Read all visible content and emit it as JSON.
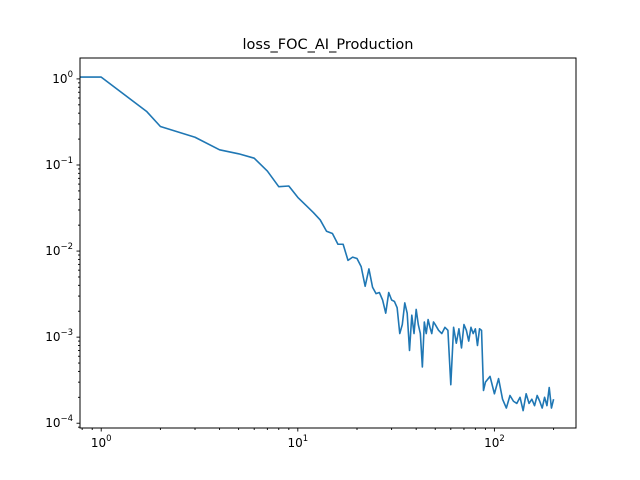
{
  "figure": {
    "title": "loss_FOC_AI_Production"
  },
  "chart_data": {
    "type": "line",
    "title": "loss_FOC_AI_Production",
    "xlabel": "",
    "ylabel": "",
    "xscale": "log",
    "yscale": "log",
    "xlim": [
      0.78,
      260
    ],
    "ylim": [
      8.8e-05,
      1.75
    ],
    "grid": false,
    "x_ticks": [
      {
        "value": 1,
        "label": "10",
        "exp": "0"
      },
      {
        "value": 10,
        "label": "10",
        "exp": "1"
      },
      {
        "value": 100,
        "label": "10",
        "exp": "2"
      }
    ],
    "y_ticks": [
      {
        "value": 0.0001,
        "label": "10",
        "exp": "−4"
      },
      {
        "value": 0.001,
        "label": "10",
        "exp": "−3"
      },
      {
        "value": 0.01,
        "label": "10",
        "exp": "−2"
      },
      {
        "value": 0.1,
        "label": "10",
        "exp": "−1"
      },
      {
        "value": 1,
        "label": "10",
        "exp": "0"
      }
    ],
    "colors": {
      "line": "#1f77b4"
    },
    "series": [
      {
        "x": [
          0.78,
          1,
          1.7,
          2,
          3,
          4,
          5,
          6,
          7,
          8,
          9,
          10,
          11,
          12,
          13,
          14,
          15,
          16,
          17,
          18,
          19,
          20,
          21,
          22,
          23,
          24,
          25,
          26,
          27,
          28,
          29,
          30,
          31,
          32,
          33,
          34,
          35,
          36,
          37,
          38,
          39,
          40,
          41,
          42,
          43,
          44,
          45,
          46,
          47,
          48,
          49,
          50,
          52,
          54,
          56,
          58,
          60,
          62,
          64,
          66,
          68,
          70,
          72,
          74,
          76,
          78,
          80,
          82,
          84,
          86,
          88,
          90,
          95,
          100,
          105,
          110,
          115,
          120,
          125,
          130,
          135,
          140,
          145,
          150,
          155,
          160,
          165,
          170,
          175,
          180,
          185,
          190,
          195,
          200
        ],
        "y": [
          1.05,
          1.05,
          0.42,
          0.28,
          0.21,
          0.15,
          0.135,
          0.12,
          0.085,
          0.056,
          0.057,
          0.042,
          0.034,
          0.028,
          0.023,
          0.017,
          0.016,
          0.012,
          0.012,
          0.0078,
          0.0085,
          0.0082,
          0.0066,
          0.0039,
          0.0062,
          0.0038,
          0.0032,
          0.0033,
          0.0027,
          0.0019,
          0.0033,
          0.0027,
          0.0026,
          0.0022,
          0.0011,
          0.0014,
          0.0025,
          0.0019,
          0.0007,
          0.0018,
          0.0011,
          0.0021,
          0.0014,
          0.0011,
          0.00045,
          0.0015,
          0.0011,
          0.0016,
          0.0013,
          0.0011,
          0.0015,
          0.0014,
          0.0012,
          0.0011,
          0.0013,
          0.0012,
          0.00028,
          0.0013,
          0.00085,
          0.00125,
          0.00075,
          0.0014,
          0.0012,
          0.0009,
          0.0013,
          0.0011,
          0.00125,
          0.0008,
          0.00125,
          0.0012,
          0.00024,
          0.0003,
          0.00035,
          0.00022,
          0.00033,
          0.00019,
          0.00015,
          0.00021,
          0.00018,
          0.00017,
          0.0002,
          0.00014,
          0.00022,
          0.00017,
          0.00019,
          0.00016,
          0.00021,
          0.00018,
          0.00015,
          0.0002,
          0.00016,
          0.00026,
          0.00015,
          0.00019
        ]
      }
    ]
  }
}
